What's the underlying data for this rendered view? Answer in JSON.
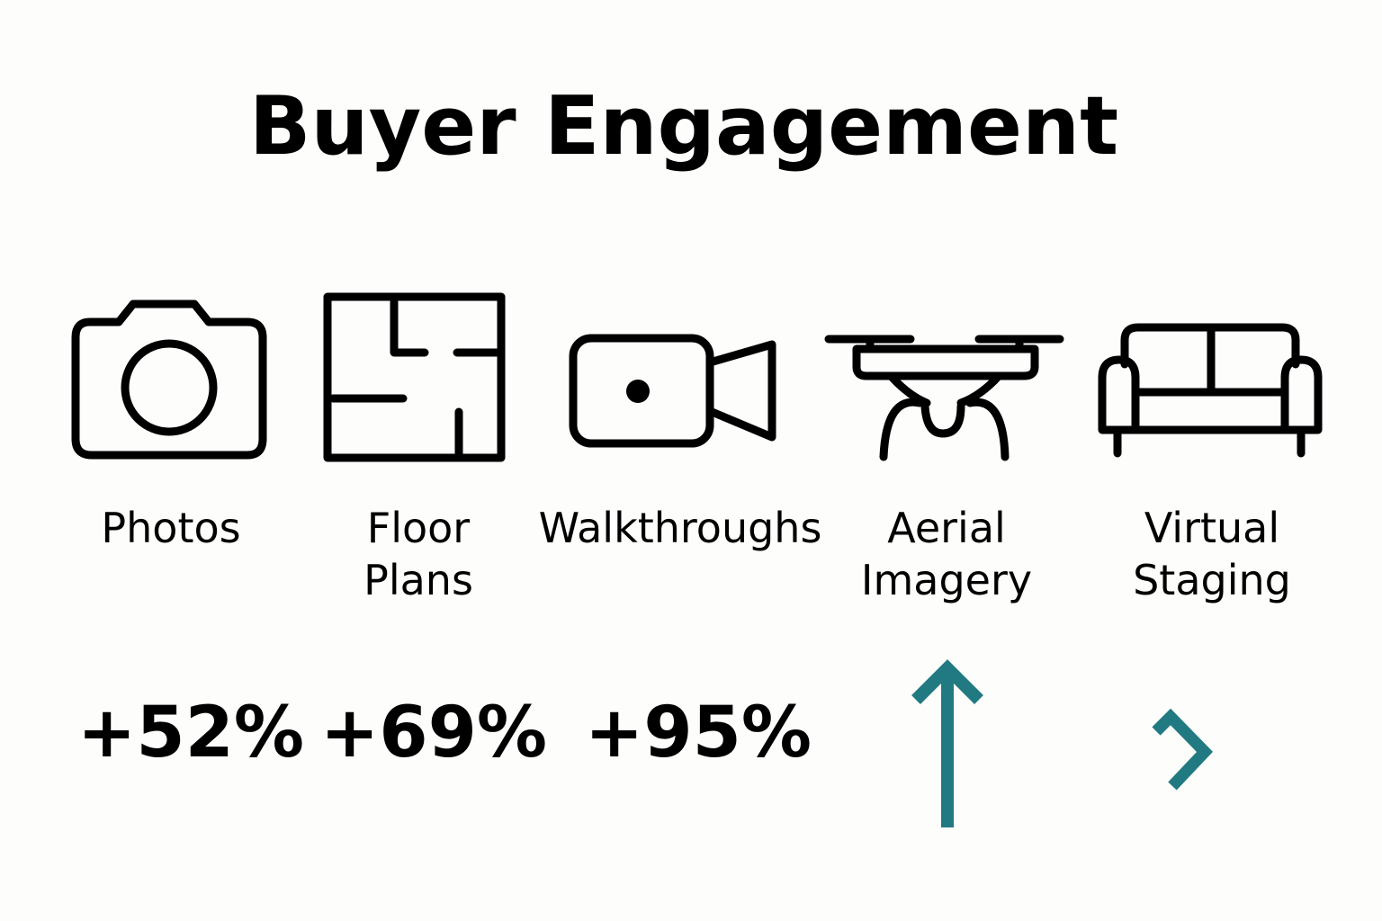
{
  "title": "Buyer Engagement",
  "accent_color": "#217a82",
  "items": [
    {
      "label_lines": [
        "Photos"
      ],
      "icon": "camera-icon",
      "value": "+52%"
    },
    {
      "label_lines": [
        "Floor",
        "Plans"
      ],
      "icon": "floor-plan-icon",
      "value": "+69%"
    },
    {
      "label_lines": [
        "Walkthroughs"
      ],
      "icon": "video-camera-icon",
      "value": "+95%"
    },
    {
      "label_lines": [
        "Aerial",
        "Imagery"
      ],
      "icon": "drone-icon",
      "indicator": "arrow-up-icon"
    },
    {
      "label_lines": [
        "Virtual",
        "Staging"
      ],
      "icon": "sofa-icon",
      "indicator": "chevron-right-icon"
    }
  ]
}
